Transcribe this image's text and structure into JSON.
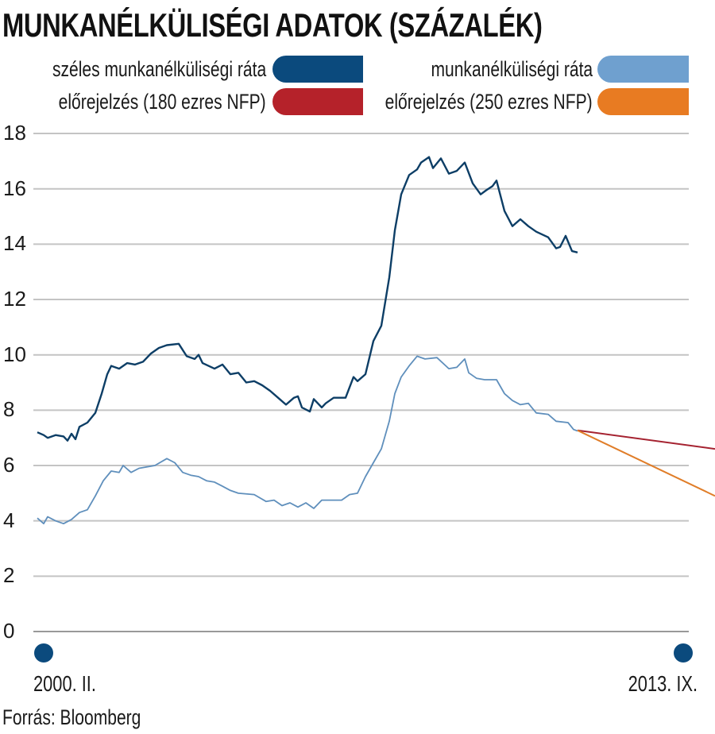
{
  "chart_data": {
    "type": "line",
    "title": "MUNKANÉLKÜLISÉGI ADATOK (SZÁZALÉK)",
    "xlabel": "",
    "ylabel": "",
    "ylim": [
      0,
      18
    ],
    "yticks": [
      "0",
      "2",
      "4",
      "6",
      "8",
      "10",
      "12",
      "14",
      "16",
      "18"
    ],
    "x_start_label": "2000. II.",
    "x_end_label": "2013. IX.",
    "grid": true,
    "legend_placement": "top",
    "source": "Forrás: Bloomberg",
    "series": [
      {
        "name": "széles munkanélküliségi ráta",
        "color": "#0b4a7d",
        "line_color": "#0d3e66",
        "points": [
          [
            2000.08,
            7.2
          ],
          [
            2000.24,
            7.1
          ],
          [
            2000.34,
            7.0
          ],
          [
            2000.54,
            7.1
          ],
          [
            2000.74,
            7.05
          ],
          [
            2000.84,
            6.9
          ],
          [
            2000.94,
            7.15
          ],
          [
            2001.04,
            6.95
          ],
          [
            2001.14,
            7.4
          ],
          [
            2001.34,
            7.55
          ],
          [
            2001.54,
            7.9
          ],
          [
            2001.7,
            8.6
          ],
          [
            2001.84,
            9.3
          ],
          [
            2001.94,
            9.6
          ],
          [
            2002.14,
            9.5
          ],
          [
            2002.34,
            9.7
          ],
          [
            2002.54,
            9.65
          ],
          [
            2002.74,
            9.75
          ],
          [
            2002.94,
            10.05
          ],
          [
            2003.14,
            10.25
          ],
          [
            2003.34,
            10.35
          ],
          [
            2003.64,
            10.4
          ],
          [
            2003.84,
            9.95
          ],
          [
            2004.04,
            9.85
          ],
          [
            2004.14,
            10.0
          ],
          [
            2004.24,
            9.7
          ],
          [
            2004.54,
            9.5
          ],
          [
            2004.74,
            9.65
          ],
          [
            2004.94,
            9.3
          ],
          [
            2005.14,
            9.35
          ],
          [
            2005.34,
            9.0
          ],
          [
            2005.54,
            9.05
          ],
          [
            2005.74,
            8.9
          ],
          [
            2005.94,
            8.7
          ],
          [
            2006.14,
            8.45
          ],
          [
            2006.34,
            8.2
          ],
          [
            2006.54,
            8.45
          ],
          [
            2006.64,
            8.5
          ],
          [
            2006.74,
            8.1
          ],
          [
            2006.94,
            7.95
          ],
          [
            2007.04,
            8.4
          ],
          [
            2007.24,
            8.1
          ],
          [
            2007.34,
            8.25
          ],
          [
            2007.54,
            8.45
          ],
          [
            2007.84,
            8.45
          ],
          [
            2008.04,
            9.2
          ],
          [
            2008.14,
            9.05
          ],
          [
            2008.34,
            9.3
          ],
          [
            2008.54,
            10.5
          ],
          [
            2008.74,
            11.05
          ],
          [
            2008.94,
            12.8
          ],
          [
            2009.08,
            14.5
          ],
          [
            2009.24,
            15.8
          ],
          [
            2009.44,
            16.5
          ],
          [
            2009.64,
            16.7
          ],
          [
            2009.74,
            16.95
          ],
          [
            2009.94,
            17.15
          ],
          [
            2010.04,
            16.75
          ],
          [
            2010.24,
            17.1
          ],
          [
            2010.44,
            16.55
          ],
          [
            2010.64,
            16.65
          ],
          [
            2010.84,
            16.95
          ],
          [
            2011.04,
            16.2
          ],
          [
            2011.24,
            15.8
          ],
          [
            2011.38,
            15.95
          ],
          [
            2011.54,
            16.1
          ],
          [
            2011.64,
            16.3
          ],
          [
            2011.84,
            15.2
          ],
          [
            2012.04,
            14.65
          ],
          [
            2012.24,
            14.9
          ],
          [
            2012.44,
            14.65
          ],
          [
            2012.64,
            14.45
          ],
          [
            2012.94,
            14.25
          ],
          [
            2013.14,
            13.85
          ],
          [
            2013.24,
            13.9
          ],
          [
            2013.38,
            14.3
          ],
          [
            2013.54,
            13.75
          ],
          [
            2013.68,
            13.7
          ]
        ]
      },
      {
        "name": "munkanélküliségi ráta",
        "color": "#6fa0cf",
        "line_color": "#5f8fbc",
        "points": [
          [
            2000.08,
            4.1
          ],
          [
            2000.24,
            3.9
          ],
          [
            2000.34,
            4.15
          ],
          [
            2000.54,
            4.0
          ],
          [
            2000.74,
            3.9
          ],
          [
            2000.94,
            4.05
          ],
          [
            2001.14,
            4.3
          ],
          [
            2001.34,
            4.4
          ],
          [
            2001.54,
            4.9
          ],
          [
            2001.74,
            5.45
          ],
          [
            2001.94,
            5.8
          ],
          [
            2002.14,
            5.75
          ],
          [
            2002.24,
            6.0
          ],
          [
            2002.44,
            5.75
          ],
          [
            2002.64,
            5.9
          ],
          [
            2002.84,
            5.95
          ],
          [
            2003.04,
            6.0
          ],
          [
            2003.34,
            6.25
          ],
          [
            2003.54,
            6.1
          ],
          [
            2003.74,
            5.75
          ],
          [
            2003.94,
            5.65
          ],
          [
            2004.14,
            5.6
          ],
          [
            2004.34,
            5.45
          ],
          [
            2004.54,
            5.4
          ],
          [
            2004.74,
            5.25
          ],
          [
            2004.94,
            5.1
          ],
          [
            2005.14,
            5.0
          ],
          [
            2005.54,
            4.95
          ],
          [
            2005.84,
            4.7
          ],
          [
            2006.04,
            4.75
          ],
          [
            2006.24,
            4.55
          ],
          [
            2006.44,
            4.65
          ],
          [
            2006.64,
            4.5
          ],
          [
            2006.84,
            4.65
          ],
          [
            2007.04,
            4.45
          ],
          [
            2007.24,
            4.75
          ],
          [
            2007.44,
            4.75
          ],
          [
            2007.74,
            4.75
          ],
          [
            2007.94,
            4.95
          ],
          [
            2008.14,
            5.0
          ],
          [
            2008.34,
            5.6
          ],
          [
            2008.54,
            6.1
          ],
          [
            2008.74,
            6.6
          ],
          [
            2008.94,
            7.6
          ],
          [
            2009.08,
            8.6
          ],
          [
            2009.24,
            9.2
          ],
          [
            2009.44,
            9.6
          ],
          [
            2009.64,
            9.95
          ],
          [
            2009.84,
            9.85
          ],
          [
            2010.14,
            9.9
          ],
          [
            2010.44,
            9.5
          ],
          [
            2010.64,
            9.55
          ],
          [
            2010.84,
            9.85
          ],
          [
            2010.94,
            9.35
          ],
          [
            2011.14,
            9.15
          ],
          [
            2011.34,
            9.1
          ],
          [
            2011.64,
            9.1
          ],
          [
            2011.84,
            8.6
          ],
          [
            2012.04,
            8.35
          ],
          [
            2012.24,
            8.2
          ],
          [
            2012.44,
            8.25
          ],
          [
            2012.64,
            7.9
          ],
          [
            2012.94,
            7.85
          ],
          [
            2013.14,
            7.6
          ],
          [
            2013.44,
            7.55
          ],
          [
            2013.58,
            7.3
          ],
          [
            2013.68,
            7.25
          ]
        ]
      },
      {
        "name": "előrejelzés (180 ezres NFP)",
        "color": "#b5222a",
        "line_color": "#a52230",
        "points": [
          [
            2013.68,
            7.27
          ],
          [
            2017.14,
            6.6
          ]
        ]
      },
      {
        "name": "előrejelzés (250 ezres NFP)",
        "color": "#e87b22",
        "line_color": "#e07d28",
        "points": [
          [
            2013.68,
            7.27
          ],
          [
            2017.14,
            4.9
          ]
        ]
      }
    ]
  }
}
